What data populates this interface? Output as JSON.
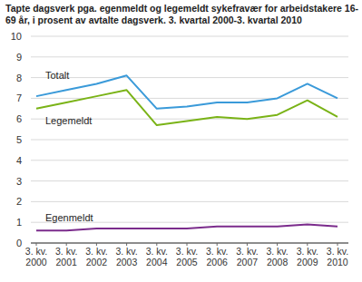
{
  "chart_data": {
    "type": "line",
    "title": "Tapte dagsverk pga. egenmeldt og legemeldt sykefravær for arbeidstakere 16-69 år, i prosent av avtalte dagsverk. 3. kvartal 2000-3. kvartal 2010",
    "categories": [
      "3. kv. 2000",
      "3. kv. 2001",
      "3. kv. 2002",
      "3. kv. 2003",
      "3. kv. 2004",
      "3. kv. 2005",
      "3. kv. 2006",
      "3. kv. 2007",
      "3. kv. 2008",
      "3. kv. 2009",
      "3. kv. 2010"
    ],
    "series": [
      {
        "name": "Totalt",
        "color": "#3a9ad9",
        "values": [
          7.1,
          7.4,
          7.7,
          8.1,
          6.5,
          6.6,
          6.8,
          6.8,
          7.0,
          7.7,
          7.0
        ]
      },
      {
        "name": "Legemeldt",
        "color": "#7ab317",
        "values": [
          6.5,
          6.8,
          7.1,
          7.4,
          5.7,
          5.9,
          6.1,
          6.0,
          6.2,
          6.9,
          6.1
        ]
      },
      {
        "name": "Egenmeldt",
        "color": "#7b2c8c",
        "values": [
          0.6,
          0.6,
          0.7,
          0.7,
          0.7,
          0.7,
          0.8,
          0.8,
          0.8,
          0.9,
          0.8
        ]
      }
    ],
    "ylim": [
      0,
      10
    ],
    "yticks": [
      0,
      1,
      2,
      3,
      4,
      5,
      6,
      7,
      8,
      9,
      10
    ],
    "grid": true
  }
}
